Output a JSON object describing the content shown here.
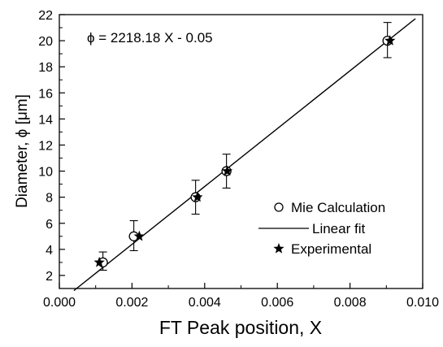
{
  "chart_data": {
    "type": "scatter",
    "xlabel": "FT Peak position, X",
    "ylabel": "Diameter, ϕ [μm]",
    "xlim": [
      0.0,
      0.01
    ],
    "ylim": [
      1,
      22
    ],
    "xticks": [
      "0.000",
      "0.002",
      "0.004",
      "0.006",
      "0.008",
      "0.010"
    ],
    "yticks": [
      "2",
      "4",
      "6",
      "8",
      "10",
      "12",
      "14",
      "16",
      "18",
      "20",
      "22"
    ],
    "grid": false,
    "legend_position": "right",
    "annotation": "ϕ = 2218.18 X - 0.05",
    "series": [
      {
        "name": "Mie Calculation",
        "marker": "open-circle",
        "x": [
          0.0012,
          0.00205,
          0.00375,
          0.0046,
          0.00903
        ],
        "y": [
          3,
          5,
          8,
          10,
          20
        ],
        "yerr_low": [
          0.6,
          1.1,
          1.3,
          1.3,
          1.3
        ],
        "yerr_high": [
          0.8,
          1.2,
          1.3,
          1.3,
          1.4
        ]
      },
      {
        "name": "Linear fit",
        "marker": "line",
        "x": [
          0.0004,
          0.0098
        ],
        "y": [
          0.837,
          21.688
        ]
      },
      {
        "name": "Experimental",
        "marker": "star",
        "x": [
          0.0011,
          0.0022,
          0.0038,
          0.00462,
          0.0091
        ],
        "y": [
          3,
          5,
          8,
          10,
          20
        ]
      }
    ]
  }
}
